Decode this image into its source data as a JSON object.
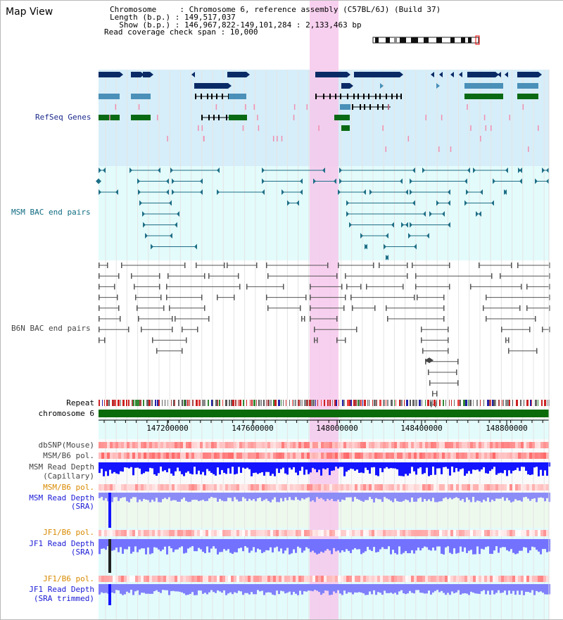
{
  "title": "Map View",
  "info": {
    "chromosome": "Chromosome     : Chromosome 6, reference assembly (C57BL/6J) (Build 37)",
    "length": "Length (b.p.) : 149,517,037",
    "show": "  Show (b.p.) : 146,967,822-149,101,284 : 2,133,463 bp",
    "coverage": "Read coverage check span : 10,000"
  },
  "tracks": {
    "refseq": "RefSeq Genes",
    "msm_bac": "MSM BAC end pairs",
    "b6n_bac": "B6N BAC end pairs",
    "repeat": "Repeat",
    "chromosome": "chromosome 6",
    "dbsnp": "dbSNP(Mouse)",
    "msm_b6_pol_1": "MSM/B6 pol.",
    "msm_read_cap_1": "MSM Read Depth",
    "msm_read_cap_2": "(Capillary)",
    "msm_b6_pol_2": "MSM/B6 pol.",
    "msm_read_sra_1": "MSM Read Depth",
    "msm_read_sra_2": "(SRA)",
    "jf1_b6_pol_1": "JF1/B6 pol.",
    "jf1_read_sra_1": "JF1 Read Depth",
    "jf1_read_sra_2": "(SRA)",
    "jf1_b6_pol_2": "JF1/B6 pol.",
    "jf1_read_trim_1": "JF1 Read Depth",
    "jf1_read_trim_2": "(SRA trimmed)"
  },
  "axis": {
    "ticks": [
      "147200000",
      "147600000",
      "148000000",
      "148400000",
      "148800000"
    ]
  },
  "colors": {
    "highlight": "#f7c8ec",
    "refseq_bg": "#d6eef9",
    "msm_bg": "#e3fbfb",
    "gene_dark": "#0a2a66",
    "gene_mid": "#4a90b8",
    "gene_green": "#0a6a14",
    "bac_teal": "#1e6e86",
    "bac_gray": "#555555",
    "depth_blue": "#1414ff",
    "depth_light": "#7272ff",
    "chromosome_green": "#0b6b0b"
  }
}
